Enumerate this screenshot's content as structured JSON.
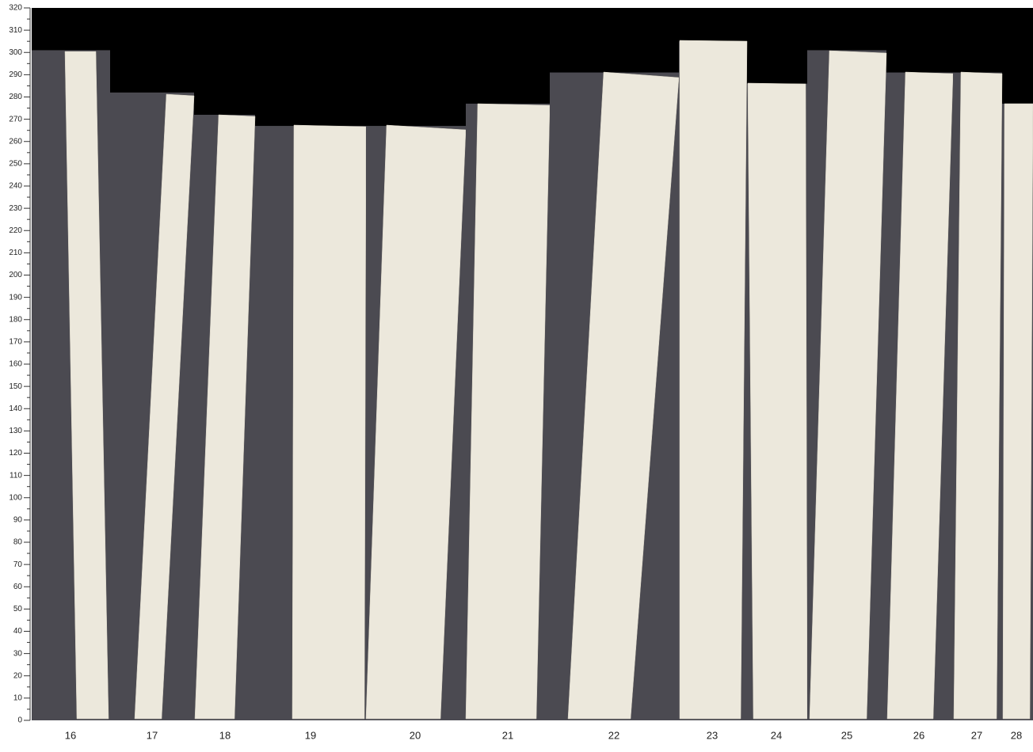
{
  "ruler": {
    "ylim": [
      0,
      320
    ],
    "yticks": [
      0,
      10,
      20,
      30,
      40,
      50,
      60,
      70,
      80,
      90,
      100,
      110,
      120,
      130,
      140,
      150,
      160,
      170,
      180,
      190,
      200,
      210,
      220,
      230,
      240,
      250,
      260,
      270,
      280,
      290,
      300,
      310,
      320
    ]
  },
  "sheets": [
    {
      "label": "16",
      "length": 301
    },
    {
      "label": "17",
      "length": 282
    },
    {
      "label": "18",
      "length": 272
    },
    {
      "label": "19",
      "length": 267
    },
    {
      "label": "20",
      "length": 267
    },
    {
      "label": "21",
      "length": 277
    },
    {
      "label": "22",
      "length": 291
    },
    {
      "label": "23",
      "length": 305
    },
    {
      "label": "24",
      "length": 286
    },
    {
      "label": "25",
      "length": 301
    },
    {
      "label": "26",
      "length": 291
    },
    {
      "label": "27",
      "length": 291
    },
    {
      "label": "28",
      "length": 277
    }
  ]
}
